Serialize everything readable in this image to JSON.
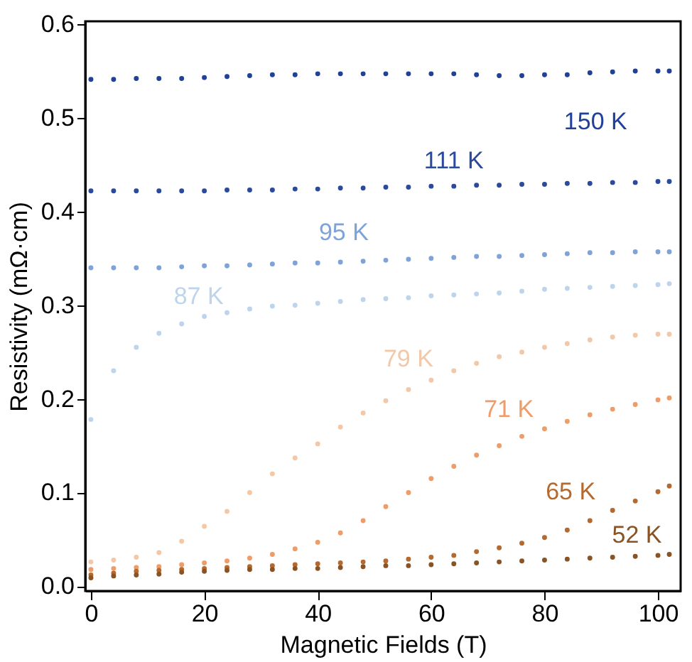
{
  "chart_data": {
    "type": "scatter",
    "xlabel": "Magnetic Fields (T)",
    "ylabel": "Resistivity (mΩ·cm)",
    "x": [
      0,
      4,
      8,
      12,
      16,
      20,
      24,
      28,
      32,
      36,
      40,
      44,
      48,
      52,
      56,
      60,
      64,
      68,
      72,
      76,
      80,
      84,
      88,
      92,
      96,
      100,
      102
    ],
    "series": [
      {
        "name": "150 K",
        "color": "#20409a",
        "values": [
          0.541,
          0.541,
          0.542,
          0.542,
          0.542,
          0.543,
          0.544,
          0.545,
          0.546,
          0.546,
          0.547,
          0.547,
          0.547,
          0.547,
          0.547,
          0.547,
          0.547,
          0.546,
          0.545,
          0.545,
          0.546,
          0.546,
          0.548,
          0.549,
          0.55,
          0.55,
          0.55
        ]
      },
      {
        "name": "111 K",
        "color": "#2a4a9e",
        "values": [
          0.422,
          0.422,
          0.422,
          0.422,
          0.422,
          0.422,
          0.423,
          0.423,
          0.423,
          0.424,
          0.424,
          0.425,
          0.425,
          0.426,
          0.426,
          0.427,
          0.427,
          0.428,
          0.428,
          0.429,
          0.429,
          0.43,
          0.43,
          0.431,
          0.431,
          0.432,
          0.432
        ]
      },
      {
        "name": "95 K",
        "color": "#7fa3d8",
        "values": [
          0.34,
          0.34,
          0.34,
          0.34,
          0.341,
          0.342,
          0.342,
          0.343,
          0.344,
          0.345,
          0.345,
          0.346,
          0.347,
          0.348,
          0.349,
          0.35,
          0.351,
          0.352,
          0.352,
          0.353,
          0.354,
          0.355,
          0.356,
          0.356,
          0.357,
          0.357,
          0.357
        ]
      },
      {
        "name": "87 K",
        "color": "#bdd4ec",
        "values": [
          0.178,
          0.23,
          0.255,
          0.27,
          0.28,
          0.288,
          0.292,
          0.296,
          0.299,
          0.3,
          0.302,
          0.304,
          0.306,
          0.307,
          0.308,
          0.31,
          0.311,
          0.312,
          0.313,
          0.315,
          0.317,
          0.318,
          0.319,
          0.32,
          0.321,
          0.322,
          0.323
        ]
      },
      {
        "name": "79 K",
        "color": "#f3c8a8",
        "values": [
          0.026,
          0.028,
          0.031,
          0.036,
          0.048,
          0.064,
          0.08,
          0.1,
          0.12,
          0.137,
          0.152,
          0.17,
          0.185,
          0.198,
          0.21,
          0.22,
          0.23,
          0.238,
          0.245,
          0.25,
          0.255,
          0.259,
          0.263,
          0.266,
          0.268,
          0.269,
          0.269
        ]
      },
      {
        "name": "71 K",
        "color": "#ef9c68",
        "values": [
          0.018,
          0.019,
          0.02,
          0.021,
          0.023,
          0.025,
          0.027,
          0.03,
          0.034,
          0.04,
          0.047,
          0.057,
          0.07,
          0.085,
          0.1,
          0.115,
          0.128,
          0.14,
          0.15,
          0.16,
          0.168,
          0.176,
          0.183,
          0.189,
          0.194,
          0.199,
          0.201
        ]
      },
      {
        "name": "65 K",
        "color": "#b5692f",
        "values": [
          0.012,
          0.014,
          0.016,
          0.017,
          0.018,
          0.019,
          0.02,
          0.021,
          0.022,
          0.023,
          0.024,
          0.025,
          0.026,
          0.027,
          0.029,
          0.031,
          0.033,
          0.037,
          0.041,
          0.046,
          0.052,
          0.06,
          0.07,
          0.081,
          0.091,
          0.101,
          0.107
        ]
      },
      {
        "name": "52 K",
        "color": "#8a5324",
        "values": [
          0.009,
          0.011,
          0.012,
          0.013,
          0.015,
          0.016,
          0.017,
          0.018,
          0.018,
          0.019,
          0.019,
          0.02,
          0.021,
          0.022,
          0.022,
          0.023,
          0.024,
          0.025,
          0.026,
          0.027,
          0.028,
          0.029,
          0.03,
          0.031,
          0.032,
          0.033,
          0.034
        ]
      }
    ],
    "xlim": [
      -1,
      104
    ],
    "ylim": [
      -0.005,
      0.603
    ],
    "xticks": [
      0,
      20,
      40,
      60,
      80,
      100
    ],
    "yticks": [
      {
        "value": 0,
        "label": "0.0"
      },
      {
        "value": 0.1,
        "label": "0.1"
      },
      {
        "value": 0.2,
        "label": "0.2"
      },
      {
        "value": 0.3,
        "label": "0.3"
      },
      {
        "value": 0.4,
        "label": "0.4"
      },
      {
        "value": 0.5,
        "label": "0.5"
      },
      {
        "value": 0.6,
        "label": "0.6"
      }
    ],
    "marker": "circle",
    "grid": false
  }
}
